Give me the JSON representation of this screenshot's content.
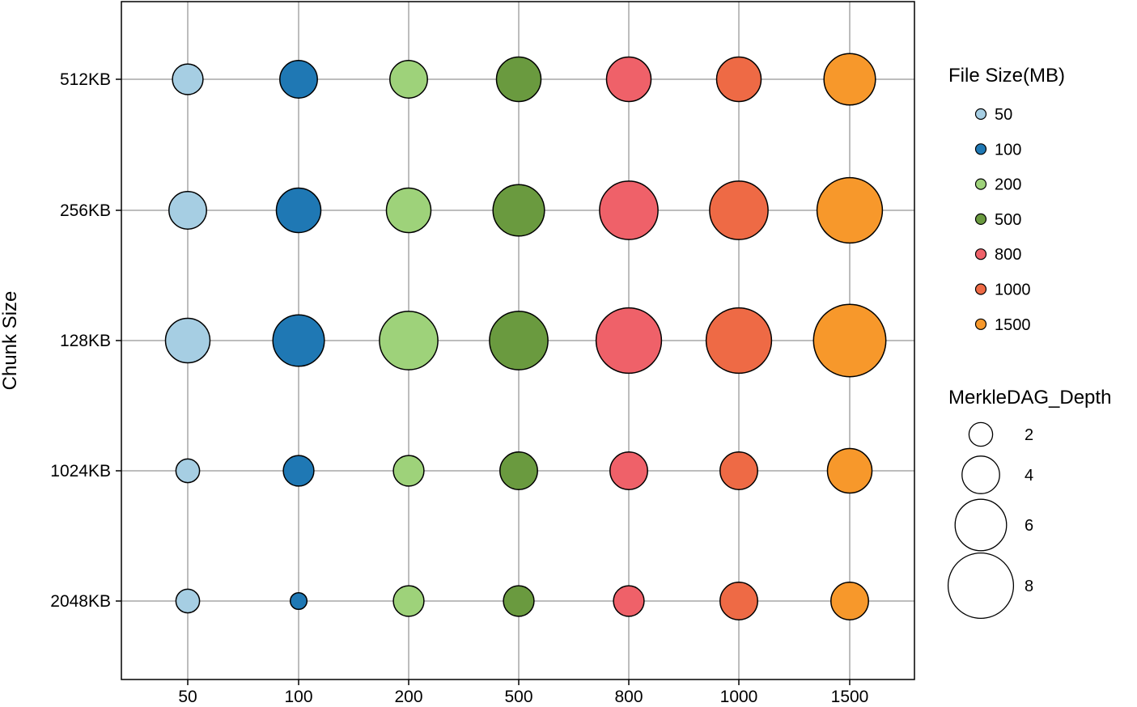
{
  "chart_data": {
    "type": "scatter",
    "title": "",
    "xlabel": "",
    "ylabel": "Chunk Size",
    "x_categories": [
      "50",
      "100",
      "200",
      "500",
      "800",
      "1000",
      "1500"
    ],
    "y_categories": [
      "2048KB",
      "1024KB",
      "128KB",
      "256KB",
      "512KB"
    ],
    "grid": true,
    "color_legend": {
      "title": "File Size(MB)",
      "placement": "right-top",
      "entries": [
        {
          "label": "50",
          "color": "#a6cee3"
        },
        {
          "label": "100",
          "color": "#1f78b4"
        },
        {
          "label": "200",
          "color": "#9ed27a"
        },
        {
          "label": "500",
          "color": "#6a9a3f"
        },
        {
          "label": "800",
          "color": "#ef6169"
        },
        {
          "label": "1000",
          "color": "#ee6a45"
        },
        {
          "label": "1500",
          "color": "#f7982b"
        }
      ]
    },
    "size_legend": {
      "title": "MerkleDAG_Depth",
      "placement": "right-bottom",
      "entries": [
        2,
        4,
        6,
        8
      ]
    },
    "points": [
      {
        "x": "50",
        "y": "512KB",
        "depth": 3
      },
      {
        "x": "100",
        "y": "512KB",
        "depth": 4
      },
      {
        "x": "200",
        "y": "512KB",
        "depth": 4
      },
      {
        "x": "500",
        "y": "512KB",
        "depth": 5
      },
      {
        "x": "800",
        "y": "512KB",
        "depth": 5
      },
      {
        "x": "1000",
        "y": "512KB",
        "depth": 5
      },
      {
        "x": "1500",
        "y": "512KB",
        "depth": 6
      },
      {
        "x": "50",
        "y": "256KB",
        "depth": 4
      },
      {
        "x": "100",
        "y": "256KB",
        "depth": 5
      },
      {
        "x": "200",
        "y": "256KB",
        "depth": 5
      },
      {
        "x": "500",
        "y": "256KB",
        "depth": 6
      },
      {
        "x": "800",
        "y": "256KB",
        "depth": 7
      },
      {
        "x": "1000",
        "y": "256KB",
        "depth": 7
      },
      {
        "x": "1500",
        "y": "256KB",
        "depth": 8
      },
      {
        "x": "50",
        "y": "128KB",
        "depth": 5
      },
      {
        "x": "100",
        "y": "128KB",
        "depth": 6
      },
      {
        "x": "200",
        "y": "128KB",
        "depth": 7
      },
      {
        "x": "500",
        "y": "128KB",
        "depth": 7
      },
      {
        "x": "800",
        "y": "128KB",
        "depth": 8
      },
      {
        "x": "1000",
        "y": "128KB",
        "depth": 8
      },
      {
        "x": "1500",
        "y": "128KB",
        "depth": 9
      },
      {
        "x": "50",
        "y": "1024KB",
        "depth": 2
      },
      {
        "x": "100",
        "y": "1024KB",
        "depth": 3
      },
      {
        "x": "200",
        "y": "1024KB",
        "depth": 3
      },
      {
        "x": "500",
        "y": "1024KB",
        "depth": 4
      },
      {
        "x": "800",
        "y": "1024KB",
        "depth": 4
      },
      {
        "x": "1000",
        "y": "1024KB",
        "depth": 4
      },
      {
        "x": "1500",
        "y": "1024KB",
        "depth": 5
      },
      {
        "x": "50",
        "y": "2048KB",
        "depth": 2
      },
      {
        "x": "100",
        "y": "2048KB",
        "depth": 1
      },
      {
        "x": "200",
        "y": "2048KB",
        "depth": 3
      },
      {
        "x": "500",
        "y": "2048KB",
        "depth": 3
      },
      {
        "x": "800",
        "y": "2048KB",
        "depth": 3
      },
      {
        "x": "1000",
        "y": "2048KB",
        "depth": 4
      },
      {
        "x": "1500",
        "y": "2048KB",
        "depth": 4
      }
    ]
  }
}
